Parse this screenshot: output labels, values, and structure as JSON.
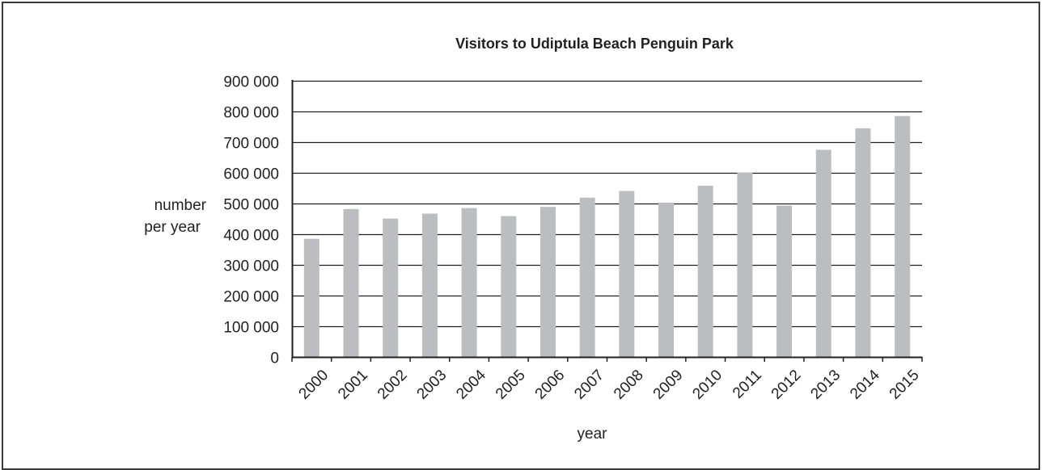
{
  "chart_data": {
    "type": "bar",
    "title": "Visitors to Udiptula Beach Penguin Park",
    "xlabel": "year",
    "ylabel_lines": [
      "number",
      "per year"
    ],
    "categories": [
      "2000",
      "2001",
      "2002",
      "2003",
      "2004",
      "2005",
      "2006",
      "2007",
      "2008",
      "2009",
      "2010",
      "2011",
      "2012",
      "2013",
      "2014",
      "2015"
    ],
    "values": [
      385000,
      482000,
      451000,
      467000,
      485000,
      459000,
      489000,
      519000,
      541000,
      503000,
      558000,
      601000,
      493000,
      675000,
      745000,
      785000
    ],
    "ylim": [
      0,
      900000
    ],
    "yticks": [
      0,
      100000,
      200000,
      300000,
      400000,
      500000,
      600000,
      700000,
      800000,
      900000
    ],
    "ytick_labels": [
      "0",
      "100 000",
      "200 000",
      "300 000",
      "400 000",
      "500 000",
      "600 000",
      "700 000",
      "800 000",
      "900 000"
    ],
    "grid": true,
    "bar_color": "#bcbdc0",
    "grid_color": "#231f20"
  }
}
